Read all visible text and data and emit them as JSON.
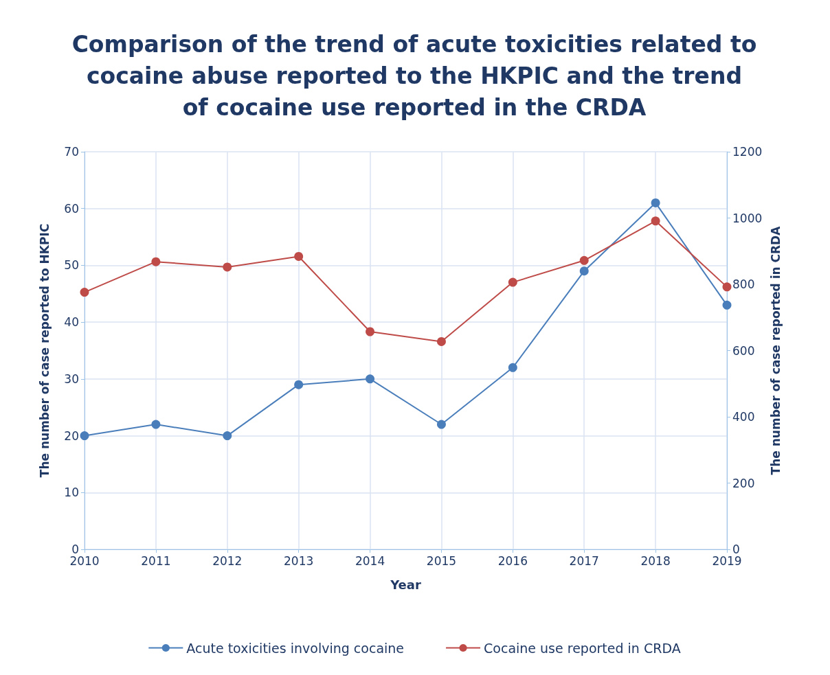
{
  "chart_data": {
    "type": "line",
    "title": "Comparison of the trend of acute toxicities related to cocaine abuse reported to the HKPIC and the trend of cocaine use reported in the CRDA",
    "xlabel": "Year",
    "ylabel": "The number of case reported to HKPIC",
    "y2label": "The number of case reported in CRDA",
    "categories": [
      "2010",
      "2011",
      "2012",
      "2013",
      "2014",
      "2015",
      "2016",
      "2017",
      "2018",
      "2019"
    ],
    "series": [
      {
        "name": "Acute toxicities involving cocaine",
        "color": "#4a7ebb",
        "values": [
          20,
          22,
          20,
          29,
          30,
          22,
          32,
          49,
          61,
          43
        ]
      },
      {
        "name": "Cocaine use reported in CRDA",
        "color": "#be4b48",
        "axis": "y2",
        "values": [
          776,
          868,
          852,
          884,
          657,
          627,
          806,
          872,
          991,
          792
        ]
      }
    ],
    "ylim": [
      0,
      70
    ],
    "yticks": [
      0,
      10,
      20,
      30,
      40,
      50,
      60,
      70
    ],
    "y2lim": [
      0,
      1200
    ],
    "y2ticks": [
      0,
      200,
      400,
      600,
      800,
      1000,
      1200
    ],
    "grid": true,
    "legend": "bottom",
    "marker": "circle",
    "line_style": "solid"
  }
}
